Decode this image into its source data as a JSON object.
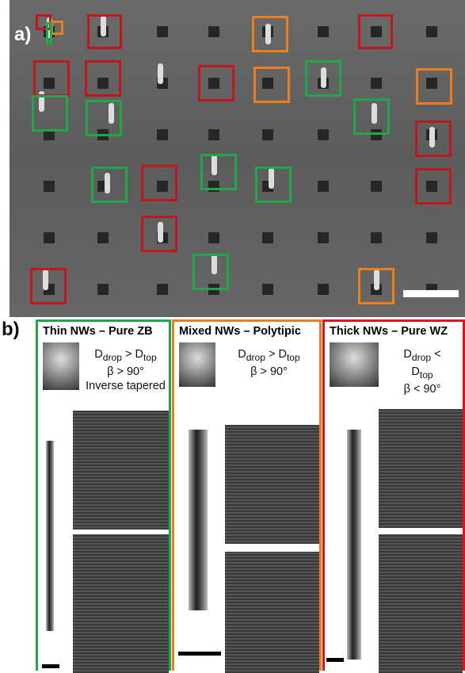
{
  "panel_a": {
    "label": "a)"
  },
  "panel_b": {
    "label": "b)",
    "columns": [
      {
        "title": "Thin NWs – Pure ZB",
        "lines": [
          [
            "D",
            "drop",
            " > D",
            "top"
          ],
          [
            "β > 90°"
          ],
          [
            "Inverse tapered"
          ]
        ]
      },
      {
        "title": "Mixed NWs – Polytipic",
        "lines": [
          [
            "D",
            "drop",
            " > D",
            "top"
          ],
          [
            "β > 90°"
          ]
        ]
      },
      {
        "title": "Thick NWs – Pure WZ",
        "lines": [
          [
            "D",
            "drop",
            " <"
          ],
          [
            "D",
            "top"
          ],
          [
            "β < 90°"
          ]
        ]
      }
    ]
  }
}
